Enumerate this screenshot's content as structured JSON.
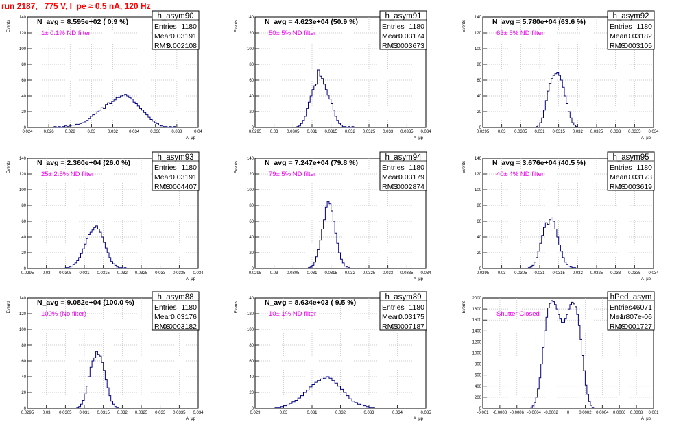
{
  "run_title": "run 2187,   775 V, I_pe ≈ 0.5 nA, 120 Hz",
  "chart_data": [
    {
      "type": "bar",
      "name": "h_asym90",
      "navg": "N_avg = 8.595e+02 ( 0.9 %)",
      "note": "1± 0.1% ND filter",
      "ylabel": "Events",
      "xlabel": "A_μp",
      "stats": {
        "Entries": "1180",
        "Mean": "0.03191",
        "RMS": "0.002108"
      },
      "xlim": [
        0.024,
        0.04
      ],
      "ylim": [
        0,
        140
      ],
      "xticks": [
        "0.024",
        "0.026",
        "0.028",
        "0.03",
        "0.032",
        "0.034",
        "0.036",
        "0.038",
        "0.04"
      ],
      "yticks": [
        "0",
        "20",
        "40",
        "60",
        "80",
        "100",
        "120",
        "140"
      ],
      "bin_start": 0.0265,
      "bin_width": 0.0002,
      "counts": [
        1,
        0,
        1,
        0,
        1,
        2,
        1,
        2,
        3,
        3,
        4,
        4,
        5,
        6,
        7,
        9,
        11,
        14,
        16,
        17,
        20,
        22,
        25,
        24,
        29,
        31,
        30,
        33,
        35,
        38,
        38,
        40,
        41,
        42,
        40,
        38,
        36,
        32,
        30,
        27,
        24,
        22,
        19,
        16,
        13,
        10,
        8,
        6,
        5,
        3,
        2,
        1,
        1,
        0,
        1,
        0,
        1
      ]
    },
    {
      "type": "bar",
      "name": "h_asym91",
      "navg": "N_avg = 4.623e+04 (50.9 %)",
      "note": "50± 5% ND filter",
      "ylabel": "Events",
      "xlabel": "A_μp",
      "stats": {
        "Entries": "1180",
        "Mean": "0.03174",
        "RMS": "0.0003673"
      },
      "xlim": [
        0.0295,
        0.034
      ],
      "ylim": [
        0,
        140
      ],
      "xticks": [
        "0.0295",
        "0.03",
        "0.0305",
        "0.031",
        "0.0315",
        "0.032",
        "0.0325",
        "0.033",
        "0.0335",
        "0.034"
      ],
      "yticks": [
        "0",
        "20",
        "40",
        "60",
        "80",
        "100",
        "120",
        "140"
      ],
      "bin_start": 0.0306,
      "bin_width": 5e-05,
      "counts": [
        1,
        2,
        5,
        9,
        14,
        24,
        32,
        40,
        48,
        53,
        55,
        73,
        65,
        62,
        55,
        48,
        41,
        36,
        30,
        22,
        14,
        9,
        5,
        3,
        1,
        1,
        0,
        1,
        0,
        1
      ]
    },
    {
      "type": "bar",
      "name": "h_asym92",
      "navg": "N_avg = 5.780e+04 (63.6 %)",
      "note": "63± 5% ND filter",
      "ylabel": "Events",
      "xlabel": "A_μp",
      "stats": {
        "Entries": "1180",
        "Mean": "0.03182",
        "RMS": "0.0003105"
      },
      "xlim": [
        0.0295,
        0.034
      ],
      "ylim": [
        0,
        140
      ],
      "xticks": [
        "0.0295",
        "0.03",
        "0.0305",
        "0.031",
        "0.0315",
        "0.032",
        "0.0325",
        "0.033",
        "0.0335",
        "0.034"
      ],
      "yticks": [
        "0",
        "20",
        "40",
        "60",
        "80",
        "100",
        "120",
        "140"
      ],
      "bin_start": 0.0309,
      "bin_width": 5e-05,
      "counts": [
        1,
        3,
        6,
        12,
        22,
        34,
        46,
        56,
        62,
        66,
        68,
        70,
        66,
        60,
        51,
        40,
        30,
        20,
        12,
        6,
        3,
        1
      ]
    },
    {
      "type": "bar",
      "name": "h_asym93",
      "navg": "N_avg = 2.360e+04 (26.0 %)",
      "note": "25± 2.5% ND filter",
      "ylabel": "Events",
      "xlabel": "A_μp",
      "stats": {
        "Entries": "1180",
        "Mean": "0.03191",
        "RMS": "0.0004407"
      },
      "xlim": [
        0.0295,
        0.034
      ],
      "ylim": [
        0,
        140
      ],
      "xticks": [
        "0.0295",
        "0.03",
        "0.0305",
        "0.031",
        "0.0315",
        "0.032",
        "0.0325",
        "0.033",
        "0.0335",
        "0.034"
      ],
      "yticks": [
        "0",
        "20",
        "40",
        "60",
        "80",
        "100",
        "120",
        "140"
      ],
      "bin_start": 0.0305,
      "bin_width": 5e-05,
      "counts": [
        1,
        1,
        2,
        3,
        5,
        7,
        10,
        14,
        19,
        25,
        31,
        38,
        43,
        46,
        49,
        52,
        54,
        50,
        46,
        40,
        33,
        26,
        20,
        14,
        9,
        6,
        4,
        2,
        1,
        1,
        0,
        1
      ]
    },
    {
      "type": "bar",
      "name": "h_asym94",
      "navg": "N_avg = 7.247e+04 (79.8 %)",
      "note": "79± 5% ND filter",
      "ylabel": "Events",
      "xlabel": "A_μp",
      "stats": {
        "Entries": "1180",
        "Mean": "0.03179",
        "RMS": "0.0002874"
      },
      "xlim": [
        0.0295,
        0.034
      ],
      "ylim": [
        0,
        140
      ],
      "xticks": [
        "0.0295",
        "0.03",
        "0.0305",
        "0.031",
        "0.0315",
        "0.032",
        "0.0325",
        "0.033",
        "0.0335",
        "0.034"
      ],
      "yticks": [
        "0",
        "20",
        "40",
        "60",
        "80",
        "100",
        "120",
        "140"
      ],
      "bin_start": 0.0309,
      "bin_width": 5e-05,
      "counts": [
        1,
        2,
        4,
        8,
        15,
        24,
        36,
        50,
        62,
        78,
        85,
        82,
        73,
        60,
        45,
        32,
        20,
        12,
        7,
        3,
        2,
        1
      ]
    },
    {
      "type": "bar",
      "name": "h_asym95",
      "navg": "N_avg = 3.676e+04 (40.5 %)",
      "note": "40± 4% ND filter",
      "ylabel": "Events",
      "xlabel": "A_μp",
      "stats": {
        "Entries": "1180",
        "Mean": "0.03173",
        "RMS": "0.0003619"
      },
      "xlim": [
        0.0295,
        0.034
      ],
      "ylim": [
        0,
        140
      ],
      "xticks": [
        "0.0295",
        "0.03",
        "0.0305",
        "0.031",
        "0.0315",
        "0.032",
        "0.0325",
        "0.033",
        "0.0335",
        "0.034"
      ],
      "yticks": [
        "0",
        "20",
        "40",
        "60",
        "80",
        "100",
        "120",
        "140"
      ],
      "bin_start": 0.0307,
      "bin_width": 5e-05,
      "counts": [
        1,
        2,
        4,
        8,
        14,
        22,
        32,
        42,
        52,
        58,
        56,
        62,
        64,
        60,
        50,
        40,
        30,
        22,
        14,
        8,
        5,
        3,
        2,
        1,
        1
      ]
    },
    {
      "type": "bar",
      "name": "h_asym88",
      "navg": "N_avg = 9.082e+04 (100.0 %)",
      "note": "100% (No filter)",
      "ylabel": "Events",
      "xlabel": "A_μp",
      "stats": {
        "Entries": "1180",
        "Mean": "0.03176",
        "RMS": "0.0003182"
      },
      "xlim": [
        0.0295,
        0.034
      ],
      "ylim": [
        0,
        140
      ],
      "xticks": [
        "0.0295",
        "0.03",
        "0.0305",
        "0.031",
        "0.0315",
        "0.032",
        "0.0325",
        "0.033",
        "0.0335",
        "0.034"
      ],
      "yticks": [
        "0",
        "20",
        "40",
        "60",
        "80",
        "100",
        "120",
        "140"
      ],
      "bin_start": 0.0308,
      "bin_width": 5e-05,
      "counts": [
        1,
        2,
        5,
        10,
        18,
        28,
        40,
        52,
        60,
        64,
        72,
        68,
        66,
        58,
        48,
        36,
        26,
        16,
        9,
        5,
        2,
        1
      ]
    },
    {
      "type": "bar",
      "name": "h_asym89",
      "navg": "N_avg = 8.634e+03 ( 9.5 %)",
      "note": "10± 1% ND filter",
      "ylabel": "Events",
      "xlabel": "A_μp",
      "stats": {
        "Entries": "1180",
        "Mean": "0.03175",
        "RMS": "0.0007187"
      },
      "xlim": [
        0.029,
        0.035
      ],
      "ylim": [
        0,
        140
      ],
      "xticks": [
        "0.029",
        "0.03",
        "0.031",
        "0.032",
        "0.033",
        "0.034",
        "0.035"
      ],
      "yticks": [
        "0",
        "20",
        "40",
        "60",
        "80",
        "100",
        "120",
        "140"
      ],
      "bin_start": 0.0297,
      "bin_width": 0.0001,
      "counts": [
        1,
        1,
        2,
        3,
        4,
        6,
        8,
        10,
        13,
        16,
        20,
        23,
        27,
        30,
        33,
        35,
        37,
        38,
        40,
        38,
        35,
        32,
        28,
        24,
        20,
        16,
        12,
        9,
        7,
        5,
        4,
        3,
        2,
        1,
        1
      ]
    },
    {
      "type": "bar",
      "name": "hPed_asym",
      "navg": "",
      "note": "Shutter Closed",
      "ylabel": "Events",
      "xlabel": "A_μp",
      "stats": {
        "Entries": "46071",
        "Mean": "-1.807e-06",
        "RMS": "0.0001727"
      },
      "xlim": [
        -0.001,
        0.001
      ],
      "ylim": [
        0,
        2000
      ],
      "xticks": [
        "-0.001",
        "-0.0008",
        "-0.0006",
        "-0.0004",
        "-0.0002",
        "0",
        "0.0002",
        "0.0004",
        "0.0006",
        "0.0008",
        "0.001"
      ],
      "yticks": [
        "0",
        "200",
        "400",
        "600",
        "800",
        "1000",
        "1200",
        "1400",
        "1600",
        "1800",
        "2000"
      ],
      "bin_start": -0.00044,
      "bin_width": 2e-05,
      "counts": [
        10,
        40,
        100,
        200,
        350,
        550,
        800,
        1100,
        1400,
        1650,
        1820,
        1900,
        1950,
        1930,
        1880,
        1800,
        1700,
        1620,
        1560,
        1560,
        1620,
        1700,
        1800,
        1880,
        1920,
        1890,
        1840,
        1700,
        1500,
        1250,
        950,
        680,
        420,
        250,
        120,
        50,
        15
      ]
    }
  ]
}
